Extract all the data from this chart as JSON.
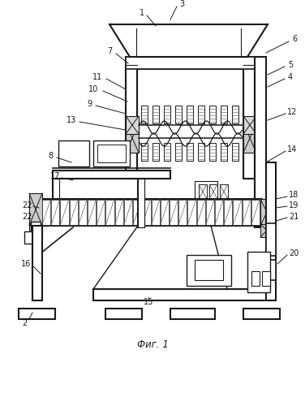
{
  "title": "Фиг. 1",
  "background_color": "#ffffff",
  "line_color": "#1a1a1a",
  "label_color": "#1a1a1a",
  "fig_width": 3.76,
  "fig_height": 5.0,
  "dpi": 100
}
